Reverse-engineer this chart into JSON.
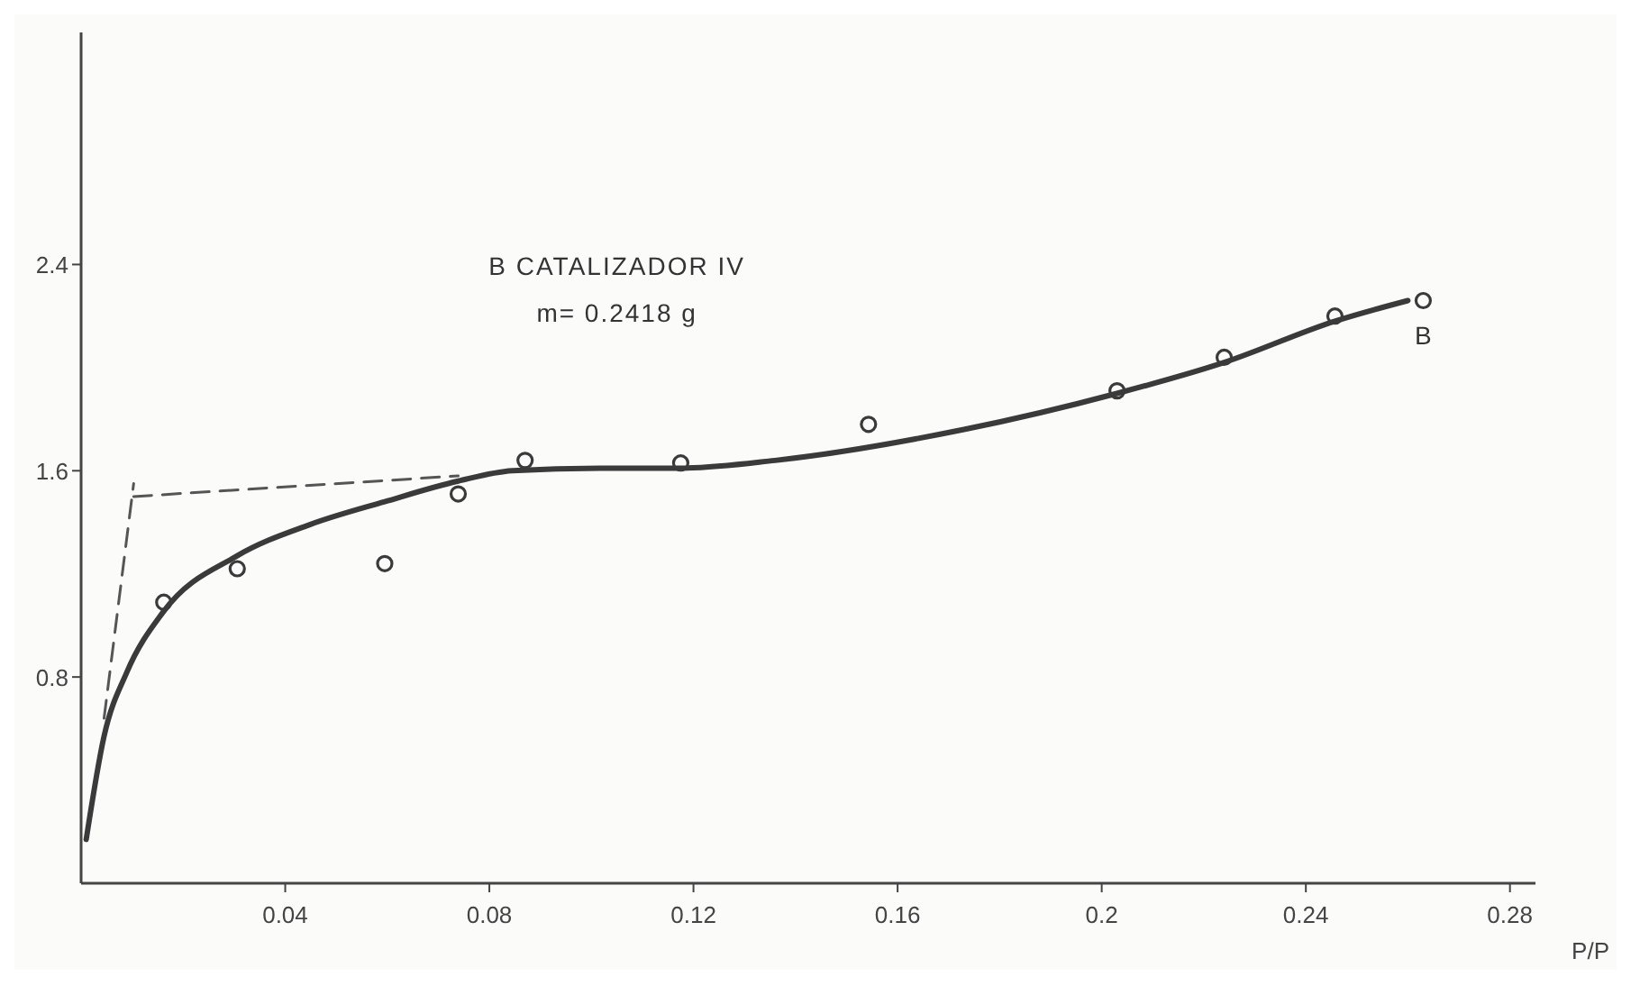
{
  "chart_data": {
    "type": "scatter",
    "xlabel": "P/P",
    "annotations": [
      "B CATALIZADOR IV",
      "m= 0.2418 g",
      {
        "text": "B",
        "x": 0.263,
        "y": 2.26
      }
    ],
    "xlim": [
      0,
      0.285
    ],
    "ylim": [
      0,
      3.3
    ],
    "xticks": [
      0.04,
      0.08,
      0.12,
      0.16,
      0.2,
      0.24,
      0.28
    ],
    "yticks": [
      0.8,
      1.6,
      2.4
    ],
    "grid": false,
    "series": [
      {
        "marker": "circle",
        "color": "#3a3a3a",
        "x": [
          0.0162,
          0.0306,
          0.0595,
          0.0739,
          0.087,
          0.1175,
          0.1543,
          0.203,
          0.224,
          0.2457,
          0.263
        ],
        "values": [
          1.09,
          1.22,
          1.24,
          1.51,
          1.64,
          1.63,
          1.78,
          1.91,
          2.04,
          2.2,
          2.26
        ]
      },
      {
        "type": "line",
        "marker": "none",
        "line_style": "solid",
        "color": "#3a3a3a",
        "x": [
          0.001,
          0.0045,
          0.009,
          0.016,
          0.0306,
          0.0447,
          0.0595,
          0.0739,
          0.0845,
          0.1017,
          0.1175,
          0.136,
          0.173,
          0.203,
          0.224,
          0.2457,
          0.26
        ],
        "values": [
          0.17,
          0.57,
          0.82,
          1.05,
          1.27,
          1.39,
          1.48,
          1.56,
          1.6,
          1.61,
          1.61,
          1.64,
          1.76,
          1.9,
          2.02,
          2.18,
          2.26
        ]
      },
      {
        "type": "line",
        "marker": "none",
        "line_style": "dashed",
        "color": "#555555",
        "x": [
          0.0103,
          0.0739
        ],
        "values": [
          1.5,
          1.58
        ]
      },
      {
        "type": "line",
        "marker": "none",
        "line_style": "dashed",
        "color": "#555555",
        "x": [
          0.0045,
          0.0103
        ],
        "values": [
          0.64,
          1.55
        ]
      }
    ]
  }
}
